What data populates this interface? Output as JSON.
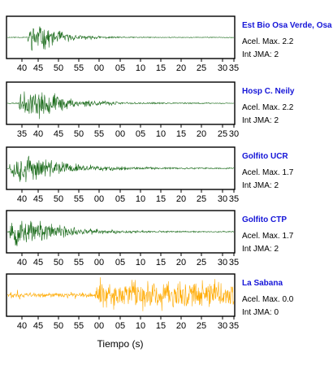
{
  "chart_data": {
    "type": "line",
    "xlabel": "Tiempo (s)",
    "panels": [
      {
        "station": "Est Bio Osa Verde, Osa",
        "accel_label": "Acel. Max. 2.2",
        "jma_label": "Int JMA: 2",
        "color": "#1a6b1a",
        "ticks": [
          "40",
          "45",
          "50",
          "55",
          "00",
          "05",
          "10",
          "15",
          "20",
          "25",
          "30",
          "35"
        ],
        "onset": 0.09,
        "peak": 0.12,
        "decay": 0.1,
        "amp": 0.95,
        "noise": 0.02,
        "seed": 11
      },
      {
        "station": "Hosp C. Neily",
        "accel_label": "Acel. Max. 2.2",
        "jma_label": "Int JMA: 2",
        "color": "#1a6b1a",
        "ticks": [
          "35",
          "40",
          "45",
          "50",
          "55",
          "00",
          "05",
          "10",
          "15",
          "20",
          "25",
          "30"
        ],
        "onset": 0.05,
        "peak": 0.12,
        "decay": 0.13,
        "amp": 0.95,
        "noise": 0.03,
        "seed": 23
      },
      {
        "station": "Golfito UCR",
        "accel_label": "Acel. Max. 1.7",
        "jma_label": "Int JMA: 2",
        "color": "#1a6b1a",
        "ticks": [
          "40",
          "45",
          "50",
          "55",
          "00",
          "05",
          "10",
          "15",
          "20",
          "25",
          "30",
          "35"
        ],
        "onset": 0.01,
        "peak": 0.04,
        "decay": 0.18,
        "amp": 0.95,
        "noise": 0.03,
        "seed": 37
      },
      {
        "station": "Golfito CTP",
        "accel_label": "Acel. Max. 1.7",
        "jma_label": "Int JMA: 2",
        "color": "#1a6b1a",
        "ticks": [
          "40",
          "45",
          "50",
          "55",
          "00",
          "05",
          "10",
          "15",
          "20",
          "25",
          "30",
          "35"
        ],
        "onset": 0.01,
        "peak": 0.05,
        "decay": 0.16,
        "amp": 0.95,
        "noise": 0.03,
        "seed": 53
      },
      {
        "station": "La Sabana",
        "accel_label": "Acel. Max. 0.0",
        "jma_label": "Int JMA: 0",
        "color": "#ffaa00",
        "ticks": [
          "40",
          "45",
          "50",
          "55",
          "00",
          "05",
          "10",
          "15",
          "20",
          "25",
          "30",
          "35"
        ],
        "noise_type": true,
        "seed": 71
      }
    ]
  }
}
